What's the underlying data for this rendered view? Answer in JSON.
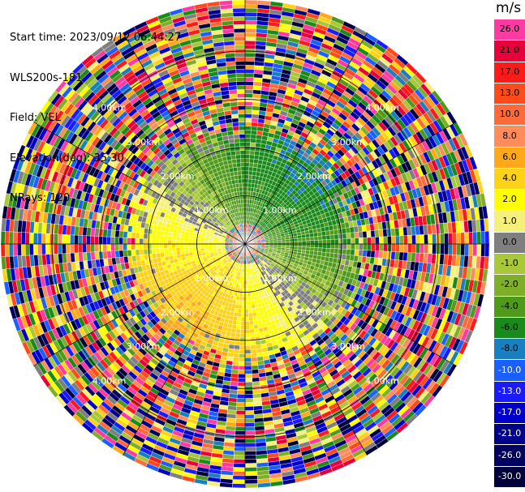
{
  "info": {
    "start_time": "Start time: 2023/09/12 06:44:27",
    "instrument": "WLS200s-181",
    "field": "Field: VEL",
    "elevation": "Elevation(deg): 35.30",
    "nrays": "NRays: 120"
  },
  "colorbar": {
    "unit": "m/s",
    "levels": [
      {
        "label": "26.0",
        "color": "#ff3aa3"
      },
      {
        "label": "21.0",
        "color": "#e8003a"
      },
      {
        "label": "17.0",
        "color": "#ff1a1a"
      },
      {
        "label": "13.0",
        "color": "#ff4a1a"
      },
      {
        "label": "10.0",
        "color": "#ff6a3a"
      },
      {
        "label": "8.0",
        "color": "#ff8c5a"
      },
      {
        "label": "6.0",
        "color": "#ffa81a"
      },
      {
        "label": "4.0",
        "color": "#ffd21a"
      },
      {
        "label": "2.0",
        "color": "#ffff00"
      },
      {
        "label": "1.0",
        "color": "#f5f07a"
      },
      {
        "label": "0.0",
        "color": "#7f7f7f"
      },
      {
        "label": "-1.0",
        "color": "#a8c83a"
      },
      {
        "label": "-2.0",
        "color": "#7faf28"
      },
      {
        "label": "-4.0",
        "color": "#4f9a1a"
      },
      {
        "label": "-6.0",
        "color": "#1a8a1a"
      },
      {
        "label": "-8.0",
        "color": "#1a7fbf"
      },
      {
        "label": "-10.0",
        "color": "#1a5fff"
      },
      {
        "label": "-13.0",
        "color": "#1a1aff"
      },
      {
        "label": "-17.0",
        "color": "#0000c8"
      },
      {
        "label": "-21.0",
        "color": "#00008b"
      },
      {
        "label": "-26.0",
        "color": "#000060"
      },
      {
        "label": "-30.0",
        "color": "#00003a"
      }
    ]
  },
  "chart_data": {
    "type": "heatmap",
    "subtype": "polar-ppi",
    "field": "VEL",
    "unit": "m/s",
    "nrays": 120,
    "range_rings_km": [
      1.0,
      2.0,
      3.0,
      4.0
    ],
    "range_labels": [
      "1.00km",
      "2.00km",
      "3.00km",
      "4.00km"
    ],
    "max_range_km": 4.9,
    "valid_range_km": 2.4,
    "note_regions": {
      "near_center": "mixed red/blue/green noise",
      "north_east": "green (negative, -2 to -6 m/s)",
      "south_west": "yellow/orange (positive, 2 to 8 m/s)",
      "beyond_valid_range": "random noise across full scale"
    }
  }
}
